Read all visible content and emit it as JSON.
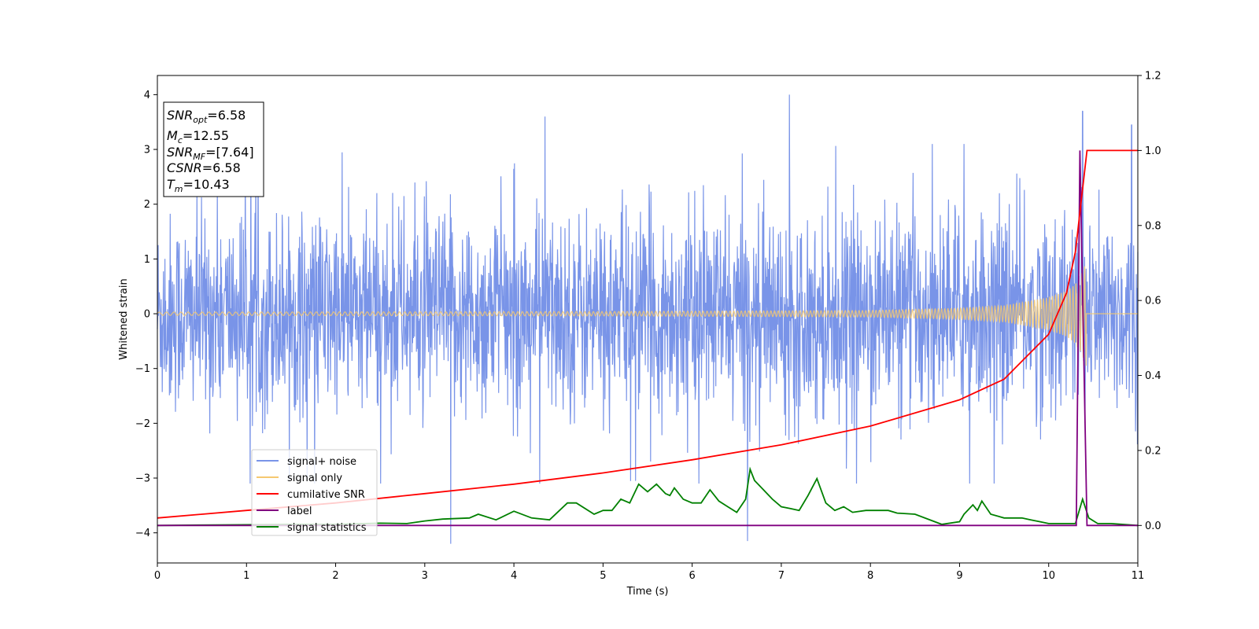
{
  "chart_data": {
    "type": "line",
    "xlabel": "Time (s)",
    "ylabel": "Whitened strain",
    "xlim": [
      0,
      11
    ],
    "ylim": [
      -4.55,
      4.35
    ],
    "y2lim": [
      -0.1,
      1.2
    ],
    "x_ticks": [
      "0",
      "1",
      "2",
      "3",
      "4",
      "5",
      "6",
      "7",
      "8",
      "9",
      "10",
      "11"
    ],
    "y_ticks": [
      "−4",
      "−3",
      "−2",
      "−1",
      "0",
      "1",
      "2",
      "3",
      "4"
    ],
    "y2_ticks": [
      "0.0",
      "0.2",
      "0.4",
      "0.6",
      "0.8",
      "1.0",
      "1.2"
    ],
    "grid": false,
    "legend_position": "lower-left",
    "info_box": {
      "line1": {
        "main": "SNR",
        "sub": "opt",
        "value": "=6.58"
      },
      "line2": {
        "main": "M",
        "sub": "c",
        "value": "=12.55"
      },
      "line3": {
        "main": "SNR",
        "sub": "MF",
        "value": "=[7.64]"
      },
      "line4": {
        "main": "CSNR",
        "sub": "",
        "value": "=6.58"
      },
      "line5": {
        "main": "T",
        "sub": "m",
        "value": "=10.43"
      }
    },
    "series": [
      {
        "name": "signal+ noise",
        "color": "#7994e8",
        "axis": "left",
        "description_values": {
          "noise_band_y": [
            -2.5,
            2.6
          ],
          "outlier_peaks": [
            [
              3.29,
              -4.2
            ],
            [
              4.35,
              3.6
            ],
            [
              7.09,
              4.0
            ],
            [
              6.62,
              -4.15
            ],
            [
              9.05,
              3.1
            ],
            [
              10.38,
              3.7
            ],
            [
              10.93,
              3.45
            ]
          ]
        }
      },
      {
        "name": "signal only",
        "color": "#f5c870",
        "axis": "left",
        "envelope": [
          [
            0,
            0.03
          ],
          [
            5,
            0.04
          ],
          [
            8,
            0.06
          ],
          [
            9,
            0.1
          ],
          [
            9.5,
            0.15
          ],
          [
            10,
            0.3
          ],
          [
            10.2,
            0.42
          ],
          [
            10.3,
            0.55
          ],
          [
            10.35,
            0.68
          ],
          [
            10.4,
            0.85
          ],
          [
            10.42,
            0.95
          ],
          [
            10.43,
            0.0
          ],
          [
            11,
            0.0
          ]
        ]
      },
      {
        "name": "cumilative SNR",
        "color": "#ff0000",
        "axis": "right",
        "x": [
          0,
          1,
          2,
          3,
          4,
          5,
          6,
          7,
          8,
          9,
          9.5,
          10,
          10.2,
          10.3,
          10.43,
          11
        ],
        "y": [
          0.02,
          0.04,
          0.06,
          0.085,
          0.11,
          0.14,
          0.175,
          0.215,
          0.265,
          0.335,
          0.39,
          0.51,
          0.62,
          0.73,
          1.0,
          1.0
        ]
      },
      {
        "name": "label",
        "color": "#800080",
        "axis": "right",
        "x": [
          0,
          10.31,
          10.35,
          10.43,
          11
        ],
        "y": [
          0.0,
          0.0,
          1.0,
          0.0,
          0.0
        ]
      },
      {
        "name": "signal statistics",
        "color": "#008000",
        "axis": "right",
        "x": [
          0,
          0.5,
          1,
          1.5,
          2,
          2.5,
          2.8,
          3,
          3.2,
          3.5,
          3.6,
          3.8,
          4,
          4.2,
          4.4,
          4.6,
          4.7,
          4.9,
          5,
          5.1,
          5.2,
          5.3,
          5.4,
          5.5,
          5.55,
          5.6,
          5.7,
          5.75,
          5.8,
          5.9,
          6,
          6.1,
          6.2,
          6.3,
          6.4,
          6.5,
          6.6,
          6.65,
          6.7,
          6.8,
          6.9,
          7,
          7.1,
          7.2,
          7.3,
          7.4,
          7.5,
          7.6,
          7.7,
          7.8,
          7.95,
          8.1,
          8.2,
          8.3,
          8.5,
          8.8,
          9,
          9.05,
          9.15,
          9.2,
          9.25,
          9.35,
          9.5,
          9.7,
          9.8,
          9.9,
          10,
          10.1,
          10.2,
          10.3,
          10.38,
          10.45,
          10.55,
          10.7,
          11
        ],
        "y": [
          0.0,
          0.001,
          0.002,
          0.003,
          0.003,
          0.006,
          0.005,
          0.012,
          0.017,
          0.02,
          0.03,
          0.015,
          0.038,
          0.02,
          0.015,
          0.06,
          0.06,
          0.03,
          0.04,
          0.04,
          0.07,
          0.06,
          0.11,
          0.09,
          0.1,
          0.11,
          0.085,
          0.08,
          0.1,
          0.07,
          0.06,
          0.06,
          0.095,
          0.065,
          0.05,
          0.035,
          0.07,
          0.15,
          0.12,
          0.095,
          0.07,
          0.05,
          0.045,
          0.04,
          0.08,
          0.125,
          0.06,
          0.04,
          0.05,
          0.035,
          0.04,
          0.04,
          0.04,
          0.033,
          0.03,
          0.003,
          0.01,
          0.03,
          0.055,
          0.04,
          0.065,
          0.03,
          0.02,
          0.02,
          0.015,
          0.01,
          0.005,
          0.005,
          0.005,
          0.005,
          0.07,
          0.02,
          0.005,
          0.005,
          0.0
        ]
      }
    ]
  }
}
